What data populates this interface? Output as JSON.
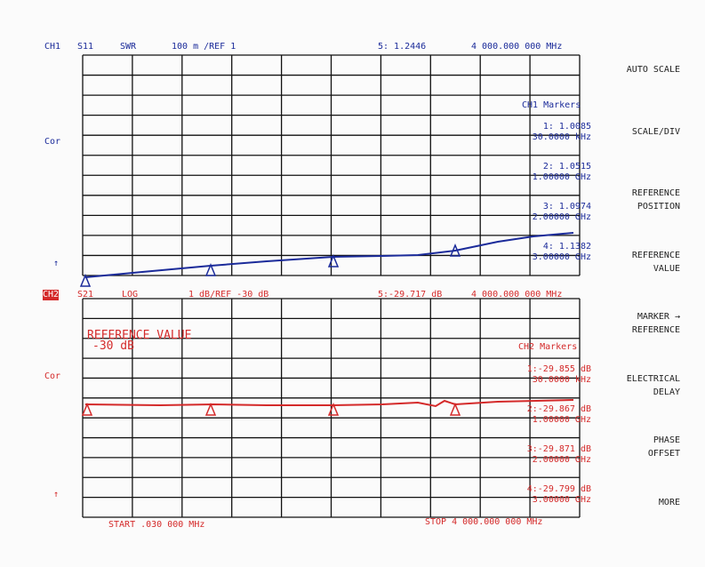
{
  "ch1": {
    "channel": "CH1",
    "param": "S11",
    "format": "SWR",
    "scale": "100 m /REF 1",
    "marker5": "5: 1.2446",
    "freq": "4 000.000 000 MHz",
    "cor": "Cor",
    "arrow": "↑",
    "markers_title": "CH1 Markers",
    "markers": [
      {
        "value": "1: 1.0085",
        "freq": "30.0000 kHz"
      },
      {
        "value": "2: 1.0515",
        "freq": "1.00000 GHz"
      },
      {
        "value": "3: 1.0974",
        "freq": "2.00000 GHz"
      },
      {
        "value": "4: 1.1382",
        "freq": "3.00000 GHz"
      }
    ]
  },
  "ch2": {
    "channel": "CH2",
    "param": "S21",
    "format": "LOG",
    "scale": "1 dB/REF -30 dB",
    "marker5": "5:-29.717 dB",
    "freq": "4 000.000 000 MHz",
    "cor": "Cor",
    "arrow": "↑",
    "ref_title": "REFERENCE VALUE",
    "ref_value": "-30 dB",
    "markers_title": "CH2 Markers",
    "markers": [
      {
        "value": "1:-29.855 dB",
        "freq": "30.0000 kHz"
      },
      {
        "value": "2:-29.867 dB",
        "freq": "1.00000 GHz"
      },
      {
        "value": "3:-29.871 dB",
        "freq": "2.00000 GHz"
      },
      {
        "value": "4:-29.799 dB",
        "freq": "3.00000 GHz"
      }
    ]
  },
  "footer": {
    "start": "START .030 000 MHz",
    "stop": "STOP 4 000.000 000 MHz"
  },
  "softkeys": [
    {
      "lines": [
        "AUTO SCALE"
      ]
    },
    {
      "lines": [
        "SCALE/DIV"
      ]
    },
    {
      "lines": [
        "REFERENCE",
        "POSITION"
      ]
    },
    {
      "lines": [
        "REFERENCE",
        "VALUE"
      ]
    },
    {
      "lines": [
        "MARKER →",
        "REFERENCE"
      ]
    },
    {
      "lines": [
        "ELECTRICAL",
        "DELAY"
      ]
    },
    {
      "lines": [
        "PHASE",
        "OFFSET"
      ]
    },
    {
      "lines": [
        "MORE"
      ]
    }
  ]
}
